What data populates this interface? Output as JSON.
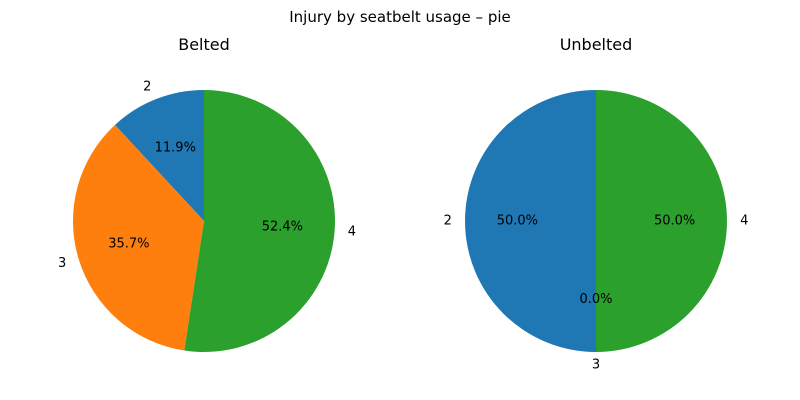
{
  "chart_data": {
    "type": "pie",
    "title": "Injury by seatbelt usage – pie",
    "colors": {
      "2": "#1f77b4",
      "3": "#ff7f0e",
      "4": "#2ca02c"
    },
    "charts": [
      {
        "title": "Belted",
        "slices": [
          {
            "label": "2",
            "value": 11.9,
            "pct_label": "11.9%"
          },
          {
            "label": "3",
            "value": 35.7,
            "pct_label": "35.7%"
          },
          {
            "label": "4",
            "value": 52.4,
            "pct_label": "52.4%"
          }
        ]
      },
      {
        "title": "Unbelted",
        "slices": [
          {
            "label": "2",
            "value": 50.0,
            "pct_label": "50.0%"
          },
          {
            "label": "3",
            "value": 0.0,
            "pct_label": "0.0%"
          },
          {
            "label": "4",
            "value": 50.0,
            "pct_label": "50.0%"
          }
        ]
      }
    ]
  }
}
